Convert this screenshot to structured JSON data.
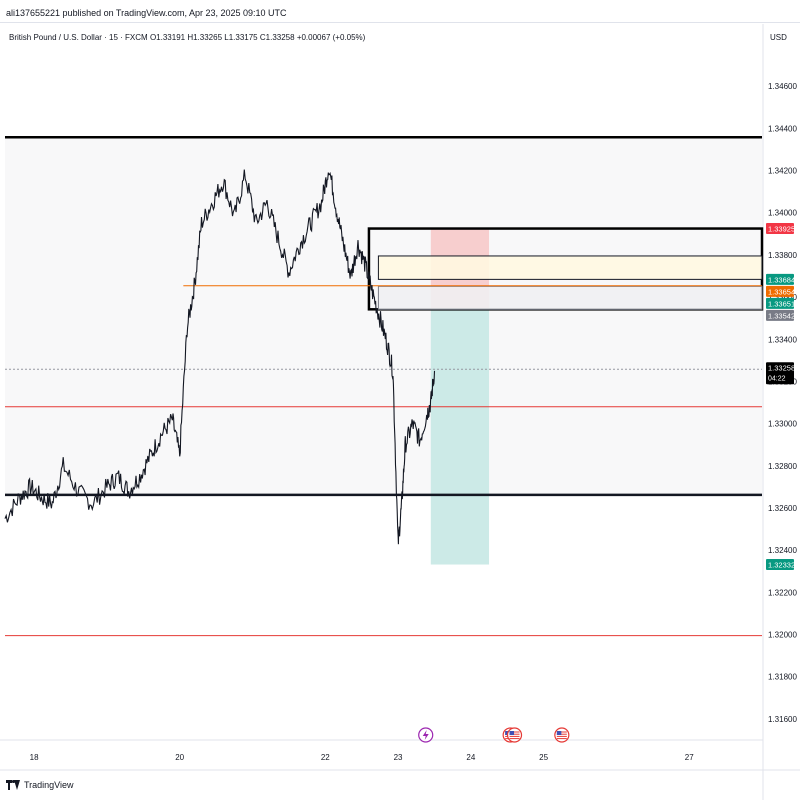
{
  "header": {
    "published": "ali137655221 published on TradingView.com, Apr 23, 2025 09:10 UTC",
    "symbol": "British Pound / U.S. Dollar · 15 · FXCM",
    "open": "O1.33191",
    "high": "H1.33265",
    "low": "L1.33175",
    "close": "C1.33258",
    "change": "+0.00067 (+0.05%)",
    "currency": "USD"
  },
  "footer": {
    "logo_text": "TradingView"
  },
  "chart_data": {
    "type": "line",
    "title": "British Pound / U.S. Dollar · 15 · FXCM",
    "xlabel": "",
    "ylabel": "",
    "ylim": [
      1.315,
      1.348
    ],
    "xlim": [
      17.6,
      28.0
    ],
    "x_tick_labels": [
      {
        "x": 18,
        "label": "18"
      },
      {
        "x": 20,
        "label": "20"
      },
      {
        "x": 22,
        "label": "22"
      },
      {
        "x": 23,
        "label": "23"
      },
      {
        "x": 24,
        "label": "24"
      },
      {
        "x": 25,
        "label": "25"
      },
      {
        "x": 27,
        "label": "27"
      }
    ],
    "y_ticks": [
      "1.34600",
      "1.34400",
      "1.34200",
      "1.34000",
      "1.33800",
      "1.33600",
      "1.33400",
      "1.33200",
      "1.33000",
      "1.32800",
      "1.32600",
      "1.32400",
      "1.32200",
      "1.32000",
      "1.31800",
      "1.31600"
    ],
    "series": [
      {
        "x": [
          17.6,
          17.8,
          17.95,
          18.1,
          18.25,
          18.4,
          18.6,
          18.8,
          19.0,
          19.15,
          19.3,
          19.45,
          19.6,
          19.75,
          19.9,
          20.0,
          20.1,
          20.2,
          20.3,
          20.45,
          20.6,
          20.75,
          20.9,
          21.05,
          21.2,
          21.35,
          21.5,
          21.65,
          21.8,
          21.95,
          22.05,
          22.15,
          22.25,
          22.35,
          22.45,
          22.55,
          22.65,
          22.75,
          22.85,
          22.93,
          23.0,
          23.05,
          23.1,
          23.2,
          23.3,
          23.4,
          23.45,
          23.5
        ],
        "y": [
          1.3255,
          1.3265,
          1.327,
          1.3265,
          1.3262,
          1.328,
          1.3268,
          1.3262,
          1.327,
          1.3275,
          1.3268,
          1.3275,
          1.3285,
          1.3295,
          1.3302,
          1.3285,
          1.3345,
          1.3365,
          1.3395,
          1.3405,
          1.3415,
          1.3398,
          1.3418,
          1.3395,
          1.3405,
          1.3388,
          1.3372,
          1.3385,
          1.3395,
          1.3405,
          1.3422,
          1.3402,
          1.3385,
          1.337,
          1.3385,
          1.3375,
          1.3362,
          1.335,
          1.3338,
          1.3325,
          1.3243,
          1.3262,
          1.329,
          1.33,
          1.3292,
          1.3305,
          1.331,
          1.3325
        ],
        "color": "#131722"
      }
    ],
    "horizontal_levels": [
      {
        "y": 1.34358,
        "color": "#000000",
        "style": "thick"
      },
      {
        "y": 1.33654,
        "color": "#ef6c00",
        "style": "thin"
      },
      {
        "y": 1.3308,
        "color": "#e53935",
        "style": "thin"
      },
      {
        "y": 1.32662,
        "color": "#131722",
        "style": "thick"
      },
      {
        "y": 1.31995,
        "color": "#e53935",
        "style": "thin"
      },
      {
        "y": 1.33258,
        "color": "#9598a1",
        "style": "dotted"
      }
    ],
    "boxes": [
      {
        "x0": 22.6,
        "x1": 28.0,
        "y0": 1.33542,
        "y1": 1.33925,
        "border": "#000000",
        "fill": "none"
      },
      {
        "x0": 22.73,
        "x1": 28.0,
        "y0": 1.33684,
        "y1": 1.33795,
        "border": "#131722",
        "fill": "#fff8e1"
      },
      {
        "x0": 22.73,
        "x1": 28.0,
        "y0": 1.33542,
        "y1": 1.33651,
        "border": "#787b86",
        "fill": "#f0f0f2"
      }
    ],
    "position": {
      "x0": 23.45,
      "x1": 24.25,
      "entry": 1.33542,
      "stop": 1.33925,
      "target": 1.32332,
      "stop_color": "#f7c7c7",
      "target_color": "#c6e8e4"
    },
    "price_labels": [
      {
        "y": 1.33925,
        "text": "1.33925",
        "bg": "#f23645",
        "fg": "#ffffff"
      },
      {
        "y": 1.33684,
        "text": "1.33684",
        "bg": "#089981",
        "fg": "#ffffff"
      },
      {
        "y": 1.33654,
        "text": "1.33654",
        "bg": "#ef6c00",
        "fg": "#ffffff"
      },
      {
        "y": 1.33651,
        "text": "1.33651",
        "bg": "#089981",
        "fg": "#ffffff"
      },
      {
        "y": 1.33542,
        "text": "1.33542",
        "bg": "#787b86",
        "fg": "#ffffff"
      },
      {
        "y": 1.33258,
        "text": "1.33258",
        "bg": "#000000",
        "fg": "#ffffff",
        "sub": "04:22"
      },
      {
        "y": 1.32332,
        "text": "1.32332",
        "bg": "#089981",
        "fg": "#ffffff"
      }
    ],
    "event_markers": [
      {
        "x": 23.38,
        "kind": "lightning",
        "color": "#9c27b0"
      },
      {
        "x": 24.54,
        "kind": "us-flag",
        "color": "#e53935"
      },
      {
        "x": 24.6,
        "kind": "us-flag",
        "color": "#e53935"
      },
      {
        "x": 25.25,
        "kind": "us-flag",
        "color": "#e53935"
      }
    ]
  }
}
